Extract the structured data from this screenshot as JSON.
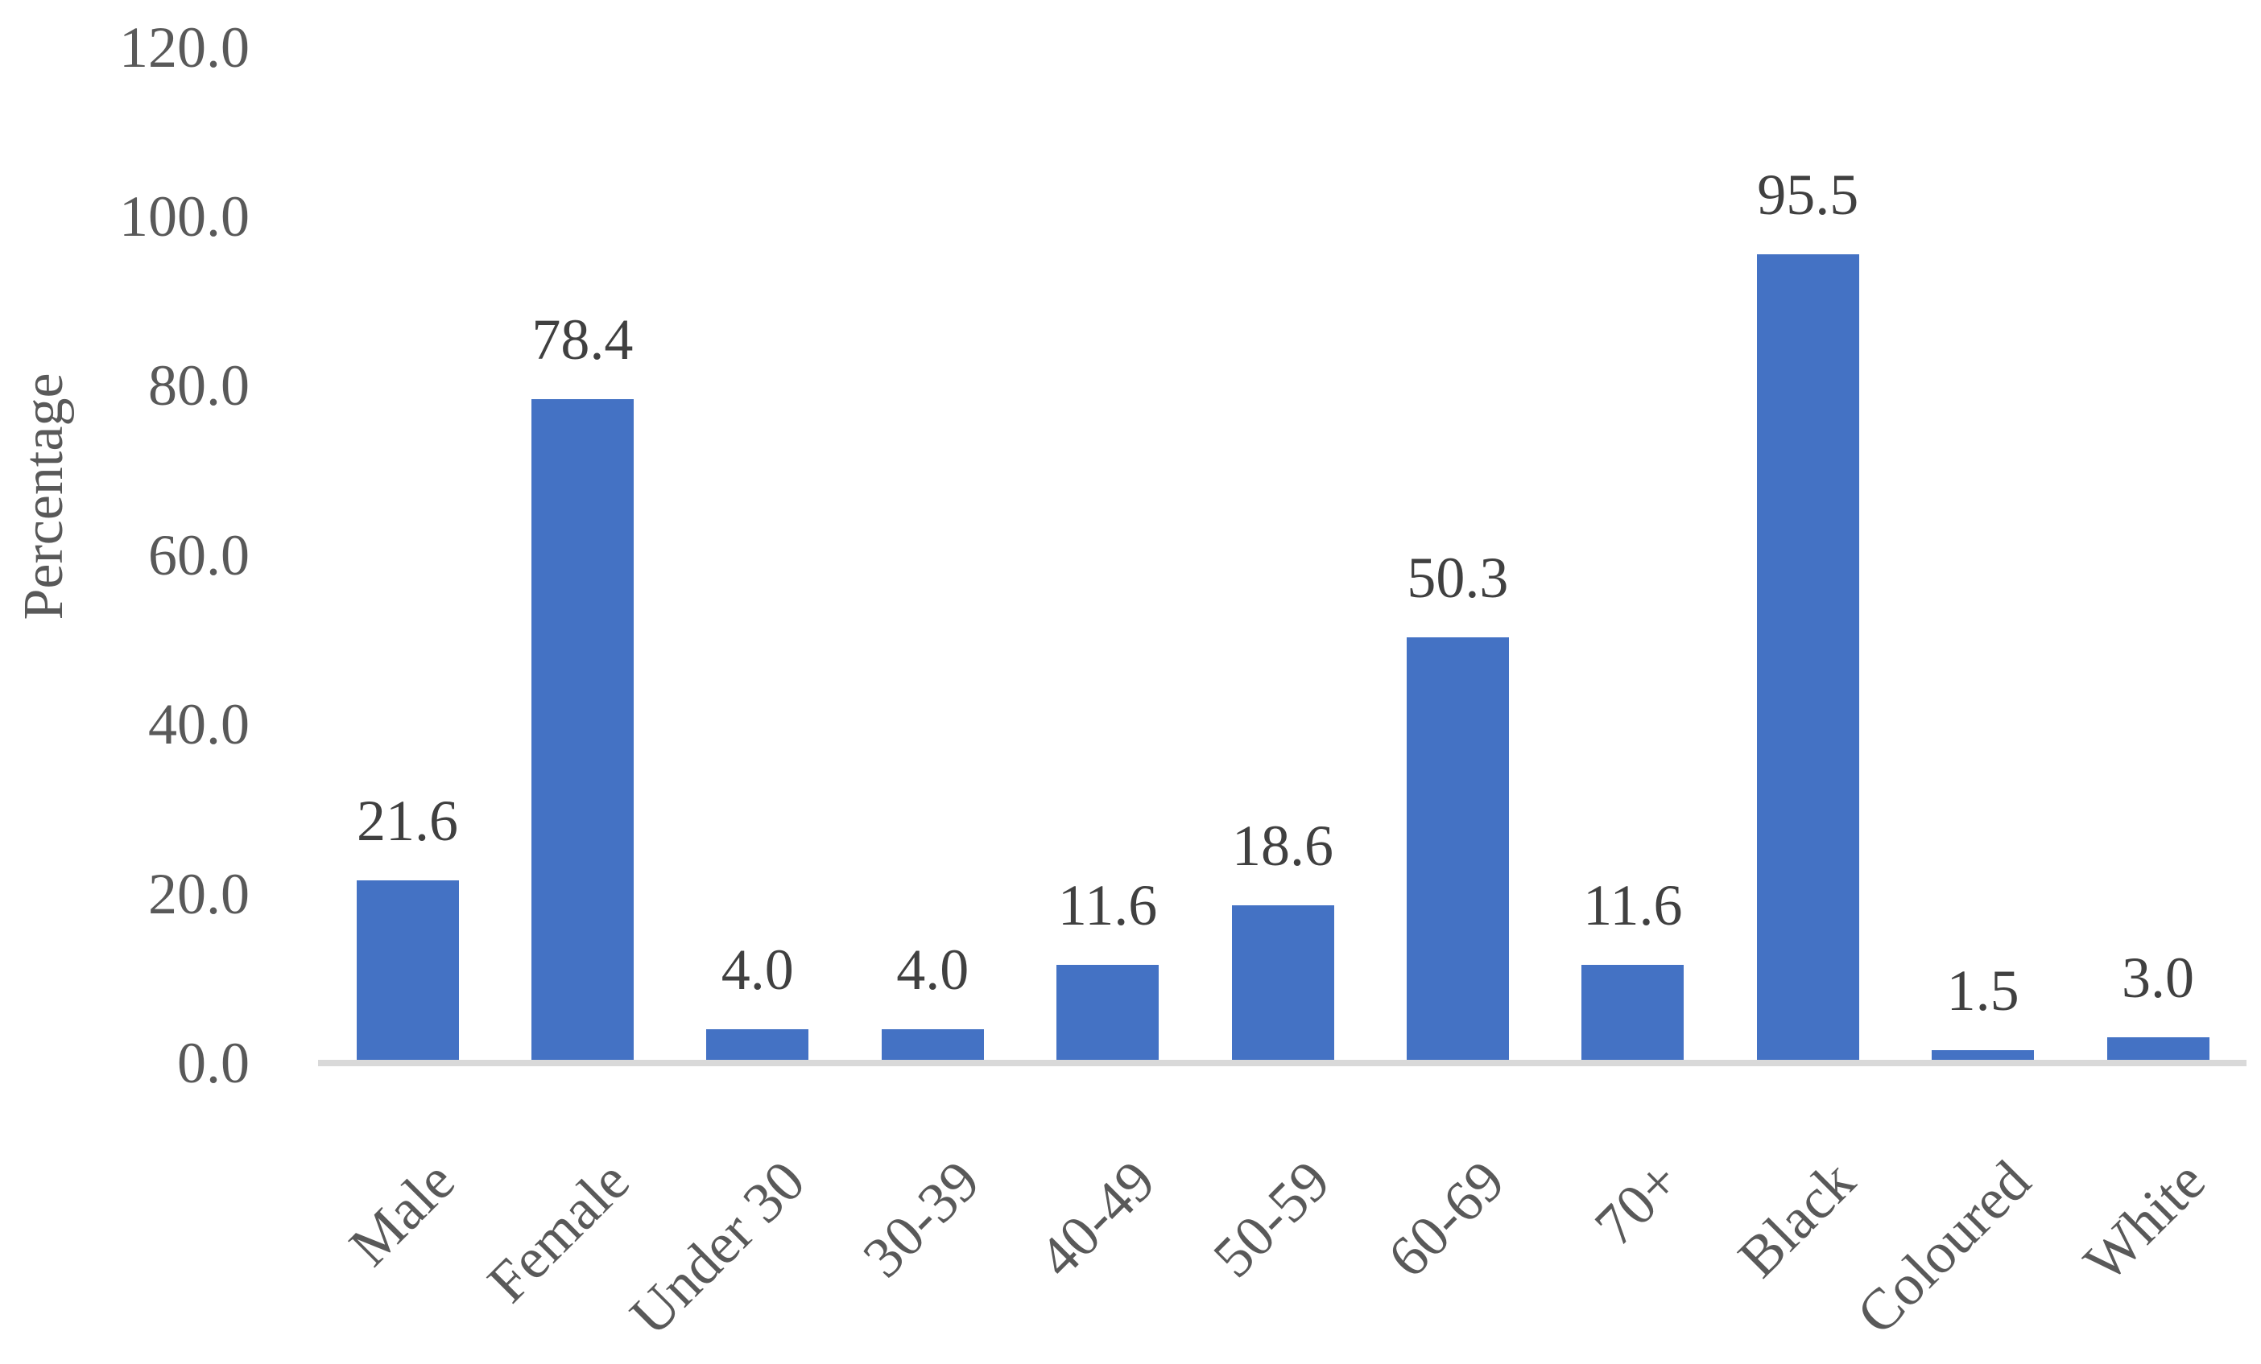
{
  "chart_data": {
    "type": "bar",
    "title": "",
    "xlabel": "",
    "ylabel": "Percentage",
    "categories": [
      "Male",
      "Female",
      "Under 30",
      "30-39",
      "40-49",
      "50-59",
      "60-69",
      "70+",
      "Black",
      "Coloured",
      "White"
    ],
    "values": [
      21.6,
      78.4,
      4.0,
      4.0,
      11.6,
      18.6,
      50.3,
      11.6,
      95.5,
      1.5,
      3.0
    ],
    "data_labels": [
      "21.6",
      "78.4",
      "4.0",
      "4.0",
      "11.6",
      "18.6",
      "50.3",
      "11.6",
      "95.5",
      "1.5",
      "3.0"
    ],
    "ylim": [
      0,
      120
    ],
    "yticks": [
      0,
      20,
      40,
      60,
      80,
      100,
      120
    ],
    "ytick_labels": [
      "0.0",
      "20.0",
      "40.0",
      "60.0",
      "80.0",
      "100.0",
      "120.0"
    ],
    "grid": false,
    "legend": false,
    "colors": {
      "bar": "#4472C4",
      "axis_line": "#D9D9D9",
      "tick_label": "#595959",
      "data_label": "#404040",
      "background": "#FFFFFF"
    }
  }
}
